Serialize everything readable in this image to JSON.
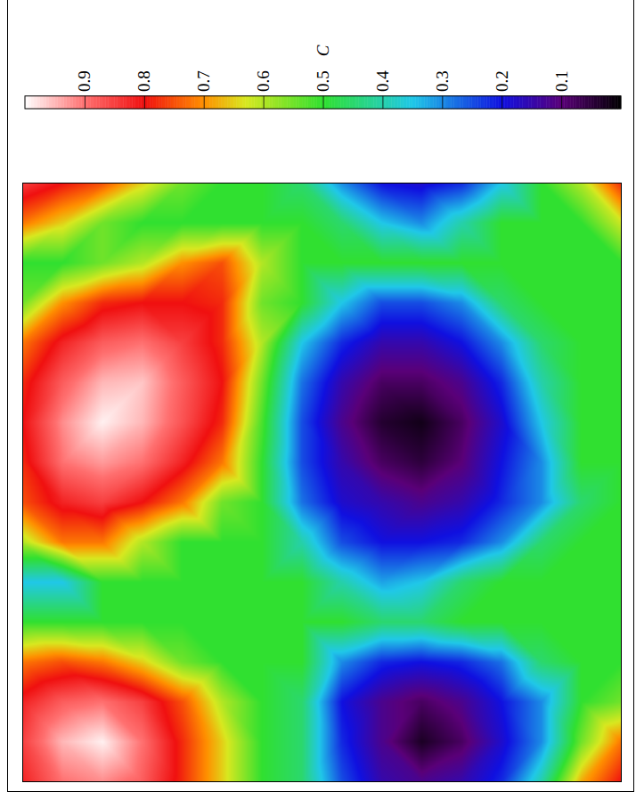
{
  "chart_data": {
    "type": "heatmap",
    "tick_labels": false,
    "color_label": "C",
    "color_range": [
      0,
      1
    ],
    "color_ticks": [
      0.1,
      0.2,
      0.3,
      0.4,
      0.5,
      0.6,
      0.7,
      0.8,
      0.9
    ],
    "values": [
      [
        0.85,
        0.8,
        0.75,
        0.65,
        0.55,
        0.5,
        0.5,
        0.45,
        0.3,
        0.2,
        0.18,
        0.22,
        0.35,
        0.5,
        0.6,
        0.78
      ],
      [
        0.72,
        0.65,
        0.55,
        0.5,
        0.5,
        0.5,
        0.5,
        0.5,
        0.45,
        0.35,
        0.3,
        0.4,
        0.5,
        0.5,
        0.5,
        0.62
      ],
      [
        0.5,
        0.5,
        0.55,
        0.6,
        0.7,
        0.75,
        0.6,
        0.5,
        0.5,
        0.5,
        0.5,
        0.5,
        0.5,
        0.5,
        0.5,
        0.5
      ],
      [
        0.55,
        0.7,
        0.78,
        0.8,
        0.8,
        0.78,
        0.55,
        0.5,
        0.35,
        0.25,
        0.25,
        0.3,
        0.45,
        0.5,
        0.5,
        0.5
      ],
      [
        0.72,
        0.82,
        0.88,
        0.9,
        0.85,
        0.78,
        0.6,
        0.35,
        0.22,
        0.15,
        0.15,
        0.2,
        0.3,
        0.45,
        0.5,
        0.5
      ],
      [
        0.78,
        0.88,
        0.95,
        0.96,
        0.88,
        0.8,
        0.55,
        0.28,
        0.15,
        0.08,
        0.08,
        0.12,
        0.22,
        0.4,
        0.5,
        0.5
      ],
      [
        0.8,
        0.92,
        0.99,
        0.95,
        0.87,
        0.78,
        0.52,
        0.25,
        0.12,
        0.04,
        0.02,
        0.08,
        0.18,
        0.35,
        0.5,
        0.5
      ],
      [
        0.78,
        0.9,
        0.93,
        0.9,
        0.82,
        0.72,
        0.5,
        0.25,
        0.15,
        0.08,
        0.05,
        0.1,
        0.2,
        0.3,
        0.5,
        0.5
      ],
      [
        0.75,
        0.82,
        0.85,
        0.8,
        0.72,
        0.55,
        0.5,
        0.28,
        0.18,
        0.15,
        0.12,
        0.15,
        0.22,
        0.3,
        0.45,
        0.5
      ],
      [
        0.6,
        0.72,
        0.72,
        0.6,
        0.5,
        0.5,
        0.5,
        0.4,
        0.25,
        0.2,
        0.2,
        0.22,
        0.3,
        0.45,
        0.5,
        0.5
      ],
      [
        0.35,
        0.35,
        0.5,
        0.5,
        0.5,
        0.5,
        0.5,
        0.5,
        0.4,
        0.32,
        0.35,
        0.45,
        0.5,
        0.5,
        0.5,
        0.5
      ],
      [
        0.5,
        0.5,
        0.5,
        0.5,
        0.5,
        0.5,
        0.5,
        0.5,
        0.5,
        0.45,
        0.45,
        0.5,
        0.5,
        0.5,
        0.5,
        0.5
      ],
      [
        0.72,
        0.75,
        0.72,
        0.65,
        0.55,
        0.5,
        0.5,
        0.5,
        0.3,
        0.22,
        0.2,
        0.22,
        0.28,
        0.45,
        0.5,
        0.5
      ],
      [
        0.82,
        0.88,
        0.9,
        0.85,
        0.75,
        0.6,
        0.5,
        0.45,
        0.2,
        0.12,
        0.08,
        0.12,
        0.2,
        0.3,
        0.5,
        0.55
      ],
      [
        0.85,
        0.95,
        0.99,
        0.9,
        0.78,
        0.65,
        0.5,
        0.45,
        0.22,
        0.12,
        0.03,
        0.08,
        0.18,
        0.3,
        0.55,
        0.72
      ],
      [
        0.82,
        0.9,
        0.92,
        0.88,
        0.78,
        0.65,
        0.5,
        0.45,
        0.25,
        0.15,
        0.12,
        0.15,
        0.22,
        0.4,
        0.68,
        0.8
      ]
    ]
  }
}
